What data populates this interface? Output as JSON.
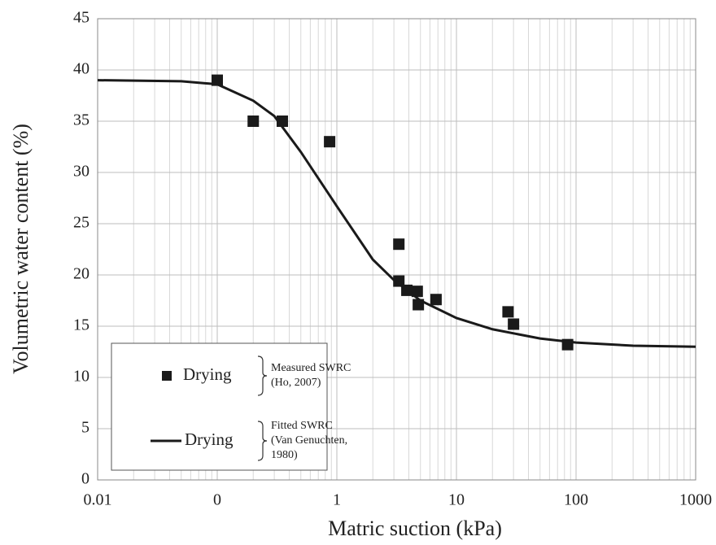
{
  "chart_data": {
    "type": "scatter",
    "x_label": "Matric suction (kPa)",
    "y_label": "Volumetric water content (%)",
    "xscale": "log",
    "xlim": [
      0.01,
      1000
    ],
    "xticks": [
      0.01,
      {
        "value": 0.1,
        "label": "0"
      },
      1,
      10,
      100,
      1000
    ],
    "ylim": [
      0,
      45
    ],
    "yticks": [
      0,
      5,
      10,
      15,
      20,
      25,
      30,
      35,
      40,
      45
    ],
    "grid": true,
    "minor_grid": true,
    "legend_position": "lower left",
    "series": [
      {
        "name": "Drying",
        "mode": "markers",
        "color": "#1a1a1a",
        "x": [
          0.1,
          0.2,
          0.35,
          0.87,
          3.3,
          3.3,
          3.85,
          4.7,
          4.8,
          6.75,
          27,
          30,
          85
        ],
        "values": [
          39,
          35,
          35,
          33,
          23,
          19.4,
          18.5,
          18.4,
          17.1,
          17.6,
          16.4,
          15.2,
          13.2
        ],
        "note": [
          "Measured SWRC",
          "(Ho, 2007)"
        ]
      },
      {
        "name": "Drying",
        "mode": "line",
        "color": "#1a1a1a",
        "x": [
          0.01,
          0.05,
          0.1,
          0.2,
          0.3,
          0.5,
          1,
          2,
          3,
          5,
          10,
          20,
          50,
          100,
          300,
          1000
        ],
        "values": [
          39,
          38.9,
          38.6,
          37,
          35.5,
          32,
          26.7,
          21.5,
          19.5,
          17.5,
          15.8,
          14.7,
          13.8,
          13.4,
          13.1,
          13
        ],
        "note": [
          "Fitted SWRC",
          "(Van Genuchten,",
          "1980)"
        ]
      }
    ]
  }
}
